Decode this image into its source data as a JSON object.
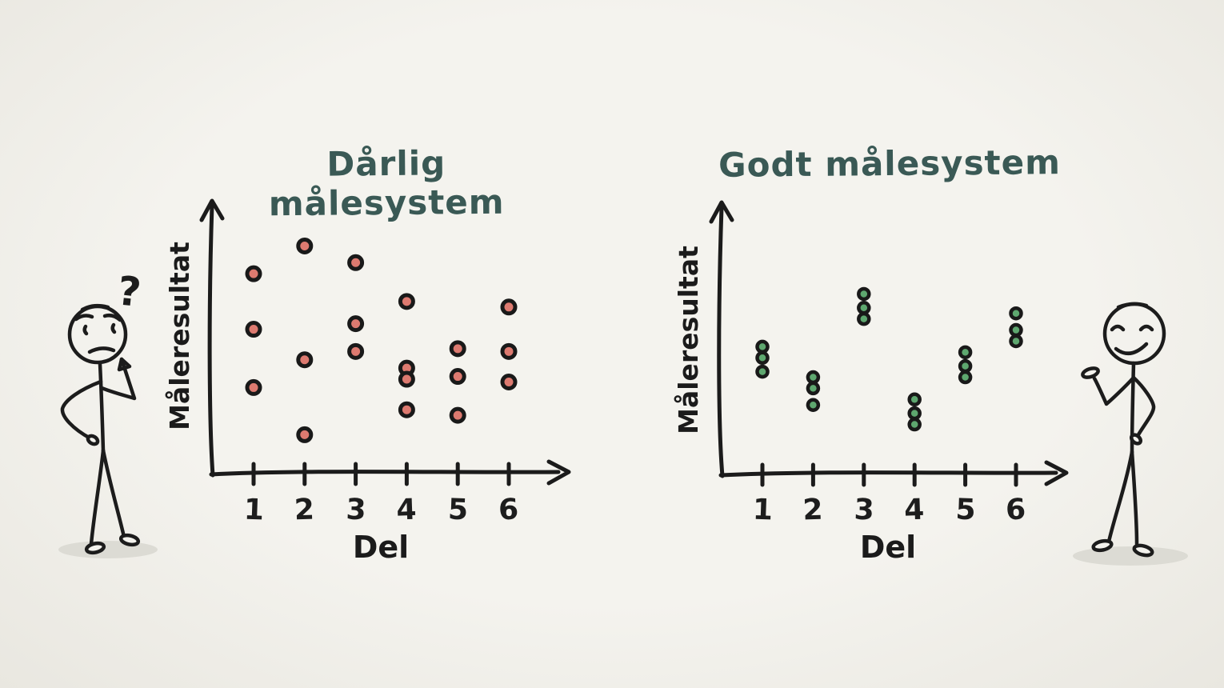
{
  "page": {
    "background": "#f2f1ec",
    "ink_color": "#1b1b1b",
    "title_color": "#3a5955"
  },
  "figures": {
    "left": {
      "mood": "confused",
      "annotation": "?"
    },
    "right": {
      "mood": "happy"
    }
  },
  "chart_data": [
    {
      "type": "scatter",
      "title": "Dårlig målesystem",
      "xlabel": "Del",
      "ylabel": "Måleresultat",
      "categories": [
        "1",
        "2",
        "3",
        "4",
        "5",
        "6"
      ],
      "ylim": [
        0,
        10
      ],
      "grid": false,
      "legend": "none",
      "marker_color": "#dd7a70",
      "marker_outline": "#191919",
      "points": [
        {
          "x": 1,
          "y": 7.2
        },
        {
          "x": 1,
          "y": 5.2
        },
        {
          "x": 1,
          "y": 3.1
        },
        {
          "x": 2,
          "y": 8.2
        },
        {
          "x": 2,
          "y": 4.1
        },
        {
          "x": 2,
          "y": 1.4
        },
        {
          "x": 3,
          "y": 7.6
        },
        {
          "x": 3,
          "y": 5.4
        },
        {
          "x": 3,
          "y": 4.4
        },
        {
          "x": 4,
          "y": 6.2
        },
        {
          "x": 4,
          "y": 3.8
        },
        {
          "x": 4,
          "y": 3.4
        },
        {
          "x": 4,
          "y": 2.3
        },
        {
          "x": 5,
          "y": 4.5
        },
        {
          "x": 5,
          "y": 3.5
        },
        {
          "x": 5,
          "y": 2.1
        },
        {
          "x": 6,
          "y": 6.0
        },
        {
          "x": 6,
          "y": 4.4
        },
        {
          "x": 6,
          "y": 3.3
        }
      ]
    },
    {
      "type": "scatter",
      "title": "Godt målesystem",
      "xlabel": "Del",
      "ylabel": "Måleresultat",
      "categories": [
        "1",
        "2",
        "3",
        "4",
        "5",
        "6"
      ],
      "ylim": [
        0,
        10
      ],
      "grid": false,
      "legend": "none",
      "marker_color": "#5ea76f",
      "marker_outline": "#191919",
      "points": [
        {
          "x": 1,
          "y": 4.6
        },
        {
          "x": 1,
          "y": 4.2
        },
        {
          "x": 1,
          "y": 3.7
        },
        {
          "x": 2,
          "y": 3.5
        },
        {
          "x": 2,
          "y": 3.1
        },
        {
          "x": 2,
          "y": 2.5
        },
        {
          "x": 3,
          "y": 6.5
        },
        {
          "x": 3,
          "y": 6.0
        },
        {
          "x": 3,
          "y": 5.6
        },
        {
          "x": 4,
          "y": 2.7
        },
        {
          "x": 4,
          "y": 2.2
        },
        {
          "x": 4,
          "y": 1.8
        },
        {
          "x": 5,
          "y": 4.4
        },
        {
          "x": 5,
          "y": 3.9
        },
        {
          "x": 5,
          "y": 3.5
        },
        {
          "x": 6,
          "y": 5.8
        },
        {
          "x": 6,
          "y": 5.2
        },
        {
          "x": 6,
          "y": 4.8
        }
      ]
    }
  ]
}
